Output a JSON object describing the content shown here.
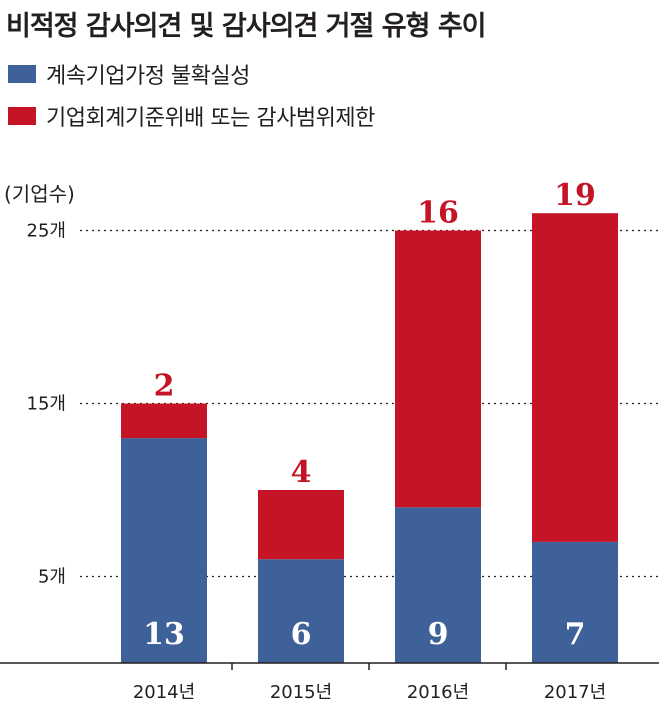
{
  "title": "비적정 감사의견 및 감사의견 거절 유형 추이",
  "unit_label": "(기업수)",
  "colors": {
    "blue": "#3f6199",
    "red": "#c41426"
  },
  "chart_data": {
    "type": "bar",
    "stacked": true,
    "categories": [
      "2014년",
      "2015년",
      "2016년",
      "2017년"
    ],
    "series": [
      {
        "name": "계속기업가정 불확실성",
        "color": "#3f6199",
        "values": [
          13,
          6,
          9,
          7
        ]
      },
      {
        "name": "기업회계기준위배 또는 감사범위제한",
        "color": "#c41426",
        "values": [
          2,
          4,
          16,
          19
        ]
      }
    ],
    "y_ticks": [
      {
        "value": 5,
        "label": "5개"
      },
      {
        "value": 15,
        "label": "15개"
      },
      {
        "value": 25,
        "label": "25개"
      }
    ],
    "ylim": [
      0,
      28
    ],
    "grid": "dotted horizontal at ticks",
    "legend": "top-left"
  }
}
